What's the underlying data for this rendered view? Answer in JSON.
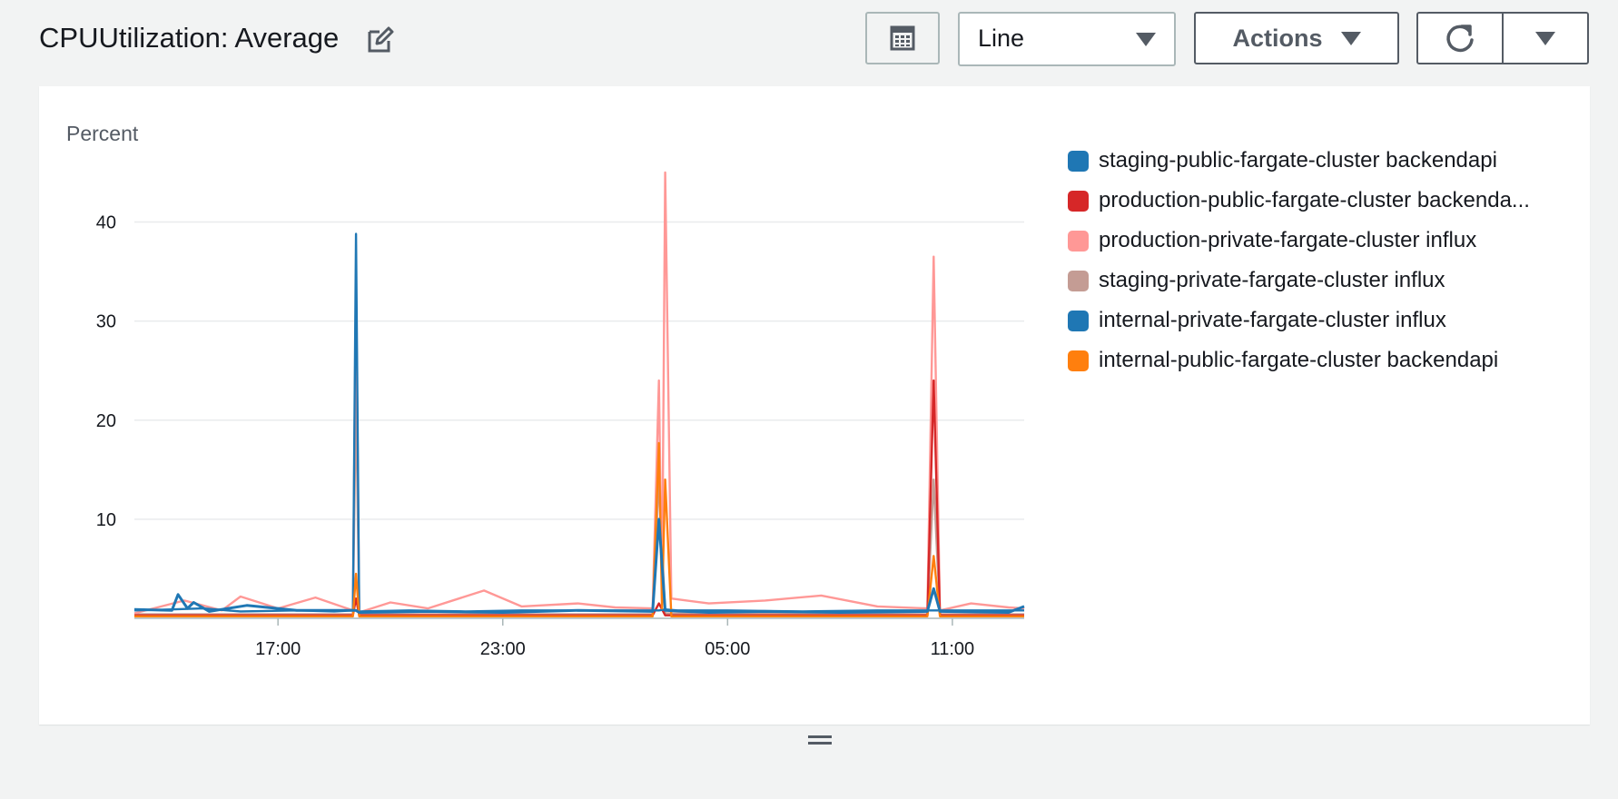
{
  "widget": {
    "title": "CPUUtilization: Average",
    "view_select": {
      "value": "Line"
    },
    "actions_label": "Actions"
  },
  "icons": {
    "edit": "edit-icon",
    "table": "table-icon",
    "refresh": "refresh-icon",
    "dropdown": "caret-down-icon",
    "resize": "resize-handle-icon"
  },
  "chart_data": {
    "type": "line",
    "ylabel": "Percent",
    "xlabel": "",
    "ylim": [
      0,
      45
    ],
    "yticks": [
      10,
      20,
      30,
      40
    ],
    "xlim": [
      "13:10",
      "12:55"
    ],
    "xtick_labels": [
      "17:00",
      "23:00",
      "05:00",
      "11:00"
    ],
    "grid": true,
    "legend_position": "right",
    "series": [
      {
        "name": "staging-public-fargate-cluster backendapi",
        "color": "#1f77b4",
        "points": [
          [
            "13:10",
            0.8
          ],
          [
            "14:10",
            0.9
          ],
          [
            "15:00",
            1.0
          ],
          [
            "16:00",
            0.7
          ],
          [
            "17:30",
            0.8
          ],
          [
            "18:30",
            0.7
          ],
          [
            "19:00",
            0.8
          ],
          [
            "19:05",
            38.8
          ],
          [
            "19:10",
            0.7
          ],
          [
            "20:30",
            0.8
          ],
          [
            "22:00",
            0.7
          ],
          [
            "23:30",
            0.8
          ],
          [
            "01:00",
            0.8
          ],
          [
            "02:20",
            0.8
          ],
          [
            "03:00",
            0.8
          ],
          [
            "03:10",
            0.8
          ],
          [
            "03:20",
            0.9
          ],
          [
            "03:40",
            0.8
          ],
          [
            "05:00",
            0.8
          ],
          [
            "07:00",
            0.7
          ],
          [
            "09:00",
            0.8
          ],
          [
            "10:20",
            0.8
          ],
          [
            "10:30",
            0.8
          ],
          [
            "10:40",
            0.8
          ],
          [
            "11:30",
            0.8
          ],
          [
            "12:30",
            0.8
          ],
          [
            "12:55",
            0.8
          ]
        ]
      },
      {
        "name": "production-public-fargate-cluster backenda...",
        "color": "#d62728",
        "points": [
          [
            "13:10",
            0.3
          ],
          [
            "19:00",
            0.3
          ],
          [
            "19:05",
            2.0
          ],
          [
            "19:10",
            0.3
          ],
          [
            "03:00",
            0.3
          ],
          [
            "03:10",
            1.5
          ],
          [
            "03:20",
            0.3
          ],
          [
            "10:20",
            0.3
          ],
          [
            "10:30",
            24.0
          ],
          [
            "10:40",
            0.3
          ],
          [
            "12:55",
            0.3
          ]
        ]
      },
      {
        "name": "production-private-fargate-cluster influx",
        "color": "#ff9896",
        "points": [
          [
            "13:10",
            0.5
          ],
          [
            "14:30",
            1.8
          ],
          [
            "15:30",
            0.8
          ],
          [
            "16:00",
            2.2
          ],
          [
            "17:00",
            1.0
          ],
          [
            "18:00",
            2.1
          ],
          [
            "19:00",
            0.8
          ],
          [
            "19:05",
            34.5
          ],
          [
            "19:10",
            0.6
          ],
          [
            "20:00",
            1.6
          ],
          [
            "21:00",
            1.0
          ],
          [
            "22:30",
            2.8
          ],
          [
            "23:30",
            1.2
          ],
          [
            "01:00",
            1.5
          ],
          [
            "02:00",
            1.1
          ],
          [
            "03:00",
            1.0
          ],
          [
            "03:10",
            24.0
          ],
          [
            "03:15",
            2.0
          ],
          [
            "03:20",
            45.0
          ],
          [
            "03:30",
            2.0
          ],
          [
            "04:30",
            1.5
          ],
          [
            "06:00",
            1.8
          ],
          [
            "07:30",
            2.3
          ],
          [
            "09:00",
            1.2
          ],
          [
            "10:20",
            1.0
          ],
          [
            "10:30",
            36.5
          ],
          [
            "10:40",
            0.8
          ],
          [
            "11:30",
            1.5
          ],
          [
            "12:30",
            1.1
          ],
          [
            "12:55",
            1.0
          ]
        ]
      },
      {
        "name": "staging-private-fargate-cluster influx",
        "color": "#c49c94",
        "points": [
          [
            "13:10",
            0.4
          ],
          [
            "19:00",
            0.4
          ],
          [
            "19:05",
            23.0
          ],
          [
            "19:10",
            0.4
          ],
          [
            "03:00",
            0.4
          ],
          [
            "03:10",
            14.0
          ],
          [
            "03:20",
            0.5
          ],
          [
            "10:20",
            0.4
          ],
          [
            "10:30",
            14.0
          ],
          [
            "10:40",
            0.4
          ],
          [
            "12:55",
            0.4
          ]
        ]
      },
      {
        "name": "internal-private-fargate-cluster influx",
        "color": "#1f77b4",
        "points": [
          [
            "13:10",
            0.9
          ],
          [
            "14:10",
            0.8
          ],
          [
            "14:20",
            2.4
          ],
          [
            "14:35",
            1.0
          ],
          [
            "14:45",
            1.6
          ],
          [
            "15:10",
            0.7
          ],
          [
            "16:10",
            1.3
          ],
          [
            "17:30",
            0.8
          ],
          [
            "19:00",
            0.8
          ],
          [
            "19:05",
            0.8
          ],
          [
            "19:10",
            0.6
          ],
          [
            "21:00",
            0.7
          ],
          [
            "23:00",
            0.6
          ],
          [
            "01:00",
            0.8
          ],
          [
            "03:00",
            0.7
          ],
          [
            "03:10",
            10.0
          ],
          [
            "03:20",
            0.8
          ],
          [
            "04:30",
            0.6
          ],
          [
            "06:00",
            0.7
          ],
          [
            "08:00",
            0.6
          ],
          [
            "10:20",
            0.7
          ],
          [
            "10:30",
            3.0
          ],
          [
            "10:40",
            0.7
          ],
          [
            "12:30",
            0.6
          ],
          [
            "12:55",
            1.2
          ]
        ]
      },
      {
        "name": "internal-public-fargate-cluster backendapi",
        "color": "#ff7f0e",
        "points": [
          [
            "13:10",
            0.2
          ],
          [
            "19:00",
            0.2
          ],
          [
            "19:05",
            4.5
          ],
          [
            "19:10",
            0.2
          ],
          [
            "03:00",
            0.2
          ],
          [
            "03:10",
            17.7
          ],
          [
            "03:15",
            1.0
          ],
          [
            "03:20",
            14.0
          ],
          [
            "03:30",
            0.2
          ],
          [
            "10:20",
            0.2
          ],
          [
            "10:30",
            6.3
          ],
          [
            "10:40",
            0.2
          ],
          [
            "12:55",
            0.2
          ]
        ]
      }
    ]
  }
}
